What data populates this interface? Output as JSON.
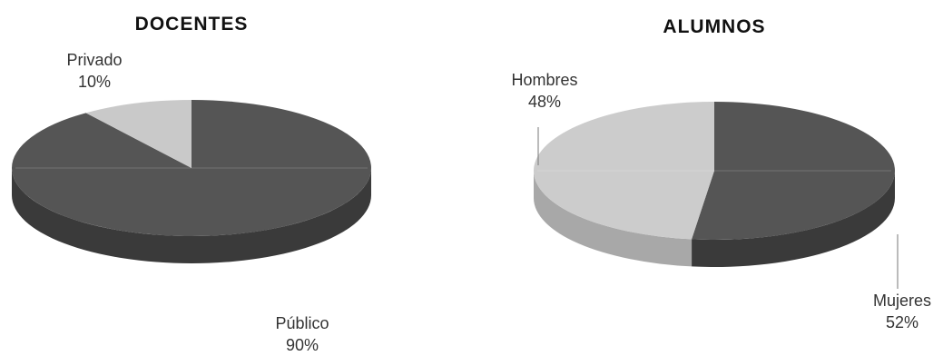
{
  "chart_data": [
    {
      "type": "pie",
      "title": "DOCENTES",
      "slices": [
        {
          "label": "Público",
          "value": 90,
          "value_label": "90%",
          "color": "#555555",
          "side_color": "#3a3a3a"
        },
        {
          "label": "Privado",
          "value": 10,
          "value_label": "10%",
          "color": "#c9c9c9",
          "side_color": "#a3a3a3"
        }
      ],
      "style": "3d-tilted"
    },
    {
      "type": "pie",
      "title": "ALUMNOS",
      "slices": [
        {
          "label": "Mujeres",
          "value": 52,
          "value_label": "52%",
          "color": "#555555",
          "side_color": "#3a3a3a"
        },
        {
          "label": "Hombres",
          "value": 48,
          "value_label": "48%",
          "color": "#cccccc",
          "side_color": "#a8a8a8"
        }
      ],
      "style": "3d-tilted"
    }
  ]
}
